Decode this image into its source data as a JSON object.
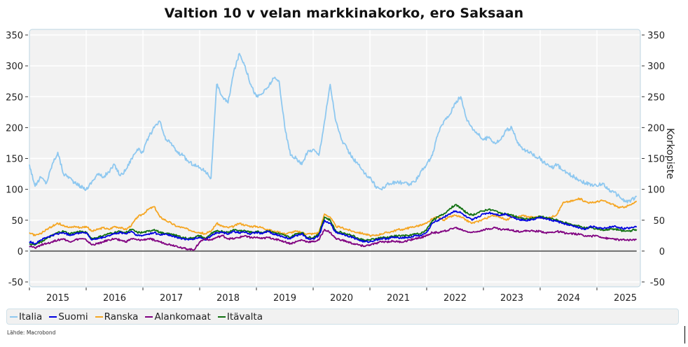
{
  "chart_data": {
    "type": "line",
    "title": "Valtion 10 v velan markkinakorko, ero Saksaan",
    "xlabel": "",
    "ylabel": "",
    "ylabel_right": "Korkopiste",
    "ylim": [
      -50,
      350
    ],
    "yticks": [
      -50,
      0,
      50,
      100,
      150,
      200,
      250,
      300,
      350
    ],
    "ytick_labels": [
      "-50",
      "0",
      "50",
      "100",
      "150",
      "200",
      "250",
      "300",
      "350"
    ],
    "xlim": [
      2015.0,
      2025.9
    ],
    "xtick_boundaries": [
      2015,
      2016,
      2017,
      2018,
      2019,
      2020,
      2021,
      2022,
      2023,
      2024,
      2025
    ],
    "xtick_labels": [
      "2015",
      "2016",
      "2017",
      "2018",
      "2019",
      "2020",
      "2021",
      "2022",
      "2023",
      "2024",
      "2025"
    ],
    "grid": true,
    "legend_position": "bottom",
    "zero_line": true,
    "x": [
      2015.0,
      2015.1,
      2015.2,
      2015.3,
      2015.4,
      2015.5,
      2015.6,
      2015.7,
      2015.8,
      2015.9,
      2016.0,
      2016.1,
      2016.2,
      2016.3,
      2016.4,
      2016.5,
      2016.6,
      2016.7,
      2016.8,
      2016.9,
      2017.0,
      2017.1,
      2017.2,
      2017.3,
      2017.4,
      2017.5,
      2017.6,
      2017.7,
      2017.8,
      2017.9,
      2018.0,
      2018.1,
      2018.2,
      2018.3,
      2018.4,
      2018.5,
      2018.6,
      2018.7,
      2018.8,
      2018.9,
      2019.0,
      2019.1,
      2019.2,
      2019.3,
      2019.4,
      2019.5,
      2019.6,
      2019.7,
      2019.8,
      2019.9,
      2020.0,
      2020.1,
      2020.2,
      2020.3,
      2020.4,
      2020.5,
      2020.6,
      2020.7,
      2020.8,
      2020.9,
      2021.0,
      2021.1,
      2021.2,
      2021.3,
      2021.4,
      2021.5,
      2021.6,
      2021.7,
      2021.8,
      2021.9,
      2022.0,
      2022.1,
      2022.2,
      2022.3,
      2022.4,
      2022.5,
      2022.6,
      2022.7,
      2022.8,
      2022.9,
      2023.0,
      2023.1,
      2023.2,
      2023.3,
      2023.4,
      2023.5,
      2023.6,
      2023.7,
      2023.8,
      2023.9,
      2024.0,
      2024.1,
      2024.2,
      2024.3,
      2024.4,
      2024.5,
      2024.6,
      2024.7,
      2024.8,
      2024.9,
      2025.0,
      2025.1,
      2025.2,
      2025.3,
      2025.4,
      2025.5,
      2025.6,
      2025.7
    ],
    "series": [
      {
        "name": "Italia",
        "color": "#8ec8f0",
        "values": [
          140,
          105,
          120,
          110,
          140,
          160,
          125,
          120,
          110,
          105,
          100,
          112,
          125,
          120,
          128,
          140,
          122,
          132,
          150,
          165,
          160,
          185,
          200,
          210,
          180,
          175,
          160,
          155,
          145,
          140,
          135,
          130,
          118,
          270,
          250,
          240,
          290,
          320,
          300,
          270,
          250,
          255,
          265,
          280,
          275,
          200,
          155,
          150,
          140,
          160,
          165,
          155,
          210,
          270,
          210,
          180,
          165,
          150,
          140,
          125,
          120,
          105,
          100,
          108,
          110,
          112,
          110,
          108,
          112,
          130,
          140,
          155,
          190,
          210,
          220,
          240,
          250,
          215,
          200,
          190,
          180,
          185,
          175,
          180,
          195,
          200,
          175,
          165,
          160,
          155,
          150,
          140,
          135,
          140,
          130,
          125,
          120,
          115,
          110,
          108,
          105,
          110,
          100,
          95,
          88,
          80,
          82,
          88
        ]
      },
      {
        "name": "Suomi",
        "color": "#0000e0",
        "values": [
          15,
          12,
          18,
          22,
          25,
          28,
          30,
          26,
          28,
          30,
          30,
          18,
          20,
          22,
          25,
          28,
          30,
          28,
          32,
          25,
          25,
          28,
          30,
          26,
          28,
          25,
          22,
          20,
          18,
          20,
          22,
          18,
          25,
          30,
          30,
          28,
          32,
          30,
          30,
          28,
          30,
          28,
          32,
          28,
          25,
          22,
          20,
          25,
          28,
          20,
          20,
          25,
          50,
          45,
          30,
          28,
          25,
          22,
          18,
          15,
          15,
          18,
          20,
          20,
          22,
          22,
          22,
          22,
          25,
          25,
          30,
          45,
          50,
          55,
          60,
          65,
          62,
          55,
          50,
          55,
          60,
          62,
          60,
          58,
          60,
          55,
          52,
          50,
          50,
          52,
          55,
          52,
          50,
          48,
          45,
          42,
          40,
          38,
          35,
          40,
          38,
          36,
          38,
          40,
          38,
          36,
          38,
          40
        ]
      },
      {
        "name": "Ranska",
        "color": "#f5a623",
        "values": [
          30,
          25,
          28,
          35,
          40,
          45,
          42,
          38,
          40,
          38,
          40,
          32,
          35,
          38,
          35,
          40,
          38,
          35,
          42,
          55,
          60,
          68,
          72,
          55,
          50,
          45,
          40,
          38,
          35,
          32,
          30,
          28,
          32,
          45,
          40,
          38,
          40,
          45,
          42,
          40,
          40,
          38,
          35,
          32,
          30,
          28,
          30,
          32,
          30,
          28,
          28,
          30,
          60,
          55,
          40,
          38,
          35,
          32,
          30,
          28,
          25,
          25,
          28,
          30,
          32,
          35,
          35,
          38,
          40,
          42,
          45,
          52,
          55,
          50,
          55,
          58,
          55,
          50,
          45,
          48,
          52,
          55,
          58,
          55,
          50,
          55,
          55,
          58,
          55,
          55,
          55,
          52,
          55,
          60,
          78,
          80,
          82,
          85,
          80,
          78,
          80,
          82,
          78,
          75,
          70,
          72,
          75,
          80
        ]
      },
      {
        "name": "Alankomaat",
        "color": "#800080",
        "values": [
          8,
          5,
          10,
          12,
          15,
          18,
          20,
          15,
          18,
          20,
          18,
          10,
          12,
          15,
          18,
          20,
          18,
          15,
          20,
          18,
          18,
          20,
          18,
          15,
          12,
          10,
          8,
          5,
          3,
          2,
          15,
          20,
          18,
          22,
          25,
          20,
          20,
          22,
          25,
          22,
          22,
          20,
          22,
          20,
          18,
          15,
          12,
          15,
          18,
          15,
          15,
          18,
          35,
          30,
          20,
          18,
          15,
          12,
          10,
          8,
          10,
          12,
          15,
          15,
          16,
          15,
          15,
          18,
          20,
          22,
          25,
          30,
          30,
          32,
          35,
          38,
          35,
          32,
          30,
          32,
          35,
          36,
          38,
          35,
          35,
          34,
          32,
          32,
          33,
          32,
          32,
          30,
          30,
          32,
          30,
          28,
          28,
          27,
          25,
          24,
          25,
          22,
          20,
          20,
          18,
          18,
          18,
          19
        ]
      },
      {
        "name": "Itävalta",
        "color": "#107010",
        "values": [
          12,
          10,
          15,
          20,
          25,
          30,
          32,
          28,
          30,
          32,
          30,
          20,
          22,
          25,
          28,
          30,
          32,
          30,
          35,
          30,
          30,
          32,
          35,
          30,
          28,
          28,
          25,
          22,
          20,
          22,
          25,
          20,
          28,
          32,
          32,
          30,
          35,
          33,
          33,
          30,
          32,
          30,
          33,
          30,
          28,
          25,
          22,
          28,
          30,
          22,
          22,
          28,
          55,
          50,
          32,
          30,
          28,
          25,
          20,
          18,
          18,
          20,
          22,
          22,
          24,
          25,
          25,
          25,
          28,
          28,
          35,
          50,
          55,
          60,
          68,
          75,
          70,
          62,
          58,
          62,
          65,
          68,
          65,
          62,
          60,
          58,
          55,
          52,
          52,
          54,
          56,
          54,
          52,
          50,
          47,
          44,
          42,
          40,
          37,
          38,
          36,
          34,
          35,
          36,
          34,
          32,
          33,
          35
        ]
      }
    ]
  },
  "legend": {
    "items": [
      {
        "label": "Italia",
        "color": "#8ec8f0"
      },
      {
        "label": "Suomi",
        "color": "#0000e0"
      },
      {
        "label": "Ranska",
        "color": "#f5a623"
      },
      {
        "label": "Alankomaat",
        "color": "#800080"
      },
      {
        "label": "Itävalta",
        "color": "#107010"
      }
    ]
  },
  "source": "Lähde: Macrobond"
}
